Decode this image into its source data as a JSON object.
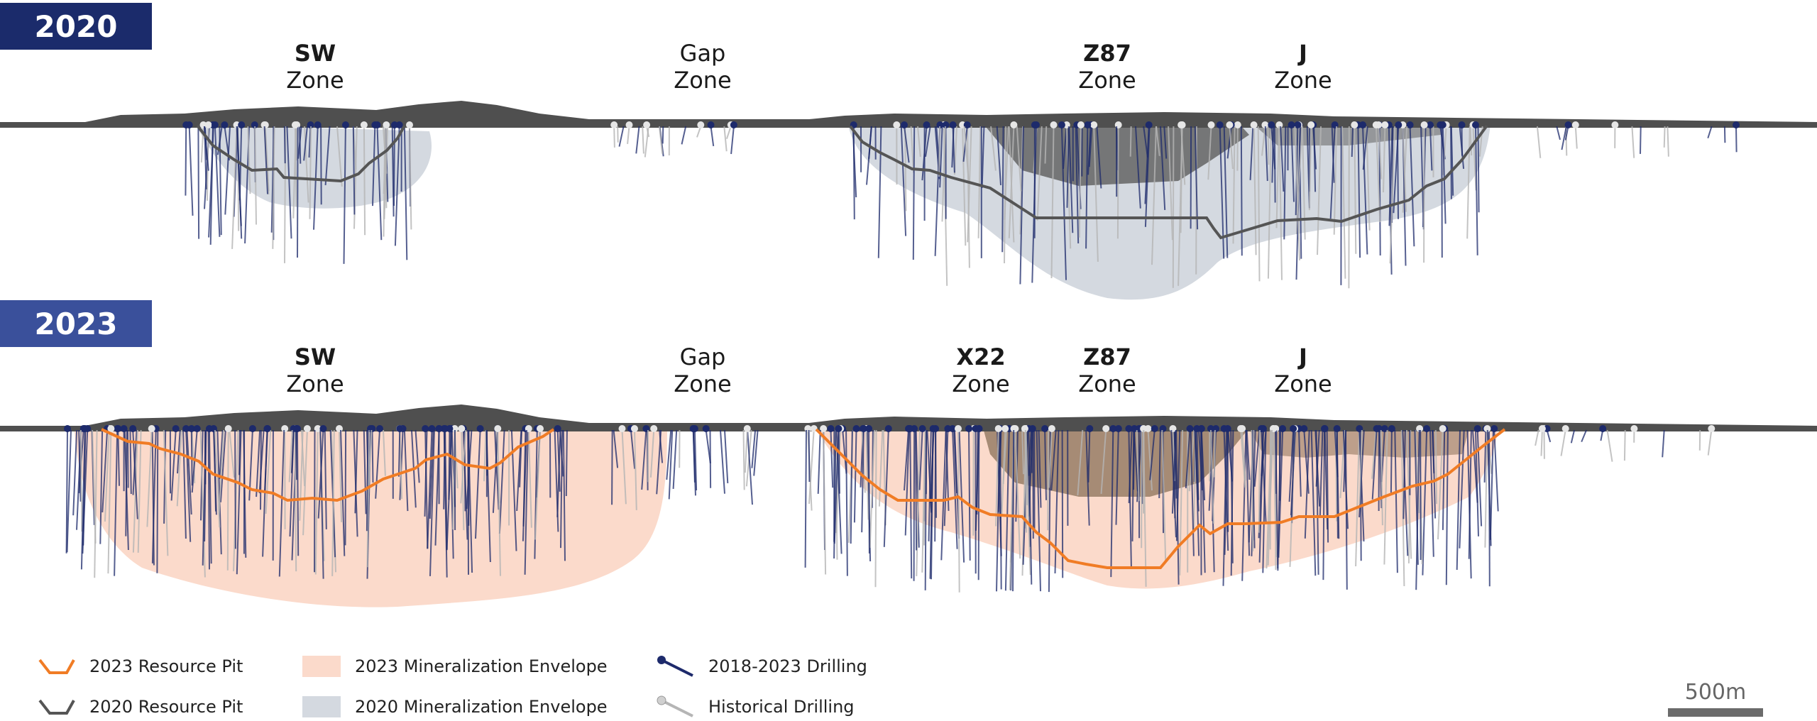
{
  "panels": [
    {
      "year": "2020",
      "zones": [
        {
          "name": "SW",
          "word": "Zone",
          "bold": true
        },
        {
          "name": "Gap",
          "word": "Zone",
          "bold": false
        },
        {
          "name": "Z87",
          "word": "Zone",
          "bold": true
        },
        {
          "name": "J",
          "word": "Zone",
          "bold": true
        }
      ]
    },
    {
      "year": "2023",
      "zones": [
        {
          "name": "SW",
          "word": "Zone",
          "bold": true
        },
        {
          "name": "Gap",
          "word": "Zone",
          "bold": false
        },
        {
          "name": "X22",
          "word": "Zone",
          "bold": true
        },
        {
          "name": "Z87",
          "word": "Zone",
          "bold": true
        },
        {
          "name": "J",
          "word": "Zone",
          "bold": true
        }
      ]
    }
  ],
  "legend": [
    {
      "label": "2023 Resource Pit",
      "icon": "orange-pit-line-icon",
      "color": "#f07c25"
    },
    {
      "label": "2020 Resource Pit",
      "icon": "gray-pit-line-icon",
      "color": "#555555"
    },
    {
      "label": "2023 Mineralization Envelope",
      "icon": "peach-envelope-swatch-icon",
      "color": "#fbdacb"
    },
    {
      "label": "2020 Mineralization Envelope",
      "icon": "gray-envelope-swatch-icon",
      "color": "#d4d9e0"
    },
    {
      "label": "2018-2023 Drilling",
      "icon": "navy-drillhole-icon",
      "color": "#1d2a6b"
    },
    {
      "label": "Historical Drilling",
      "icon": "gray-drillhole-icon",
      "color": "#b5b5b5"
    }
  ],
  "scale": {
    "label": "500m"
  },
  "colors": {
    "badge_2020": "#1b2b6b",
    "badge_2023": "#3a509b",
    "pit_2023": "#f07c25",
    "pit_2020": "#555555",
    "envelope_2023": "#fbdacb",
    "envelope_2020": "#d4d9e0",
    "drill_new": "#1d2a6b",
    "drill_hist": "#b5b5b5",
    "surface": "#5a5a5a"
  }
}
